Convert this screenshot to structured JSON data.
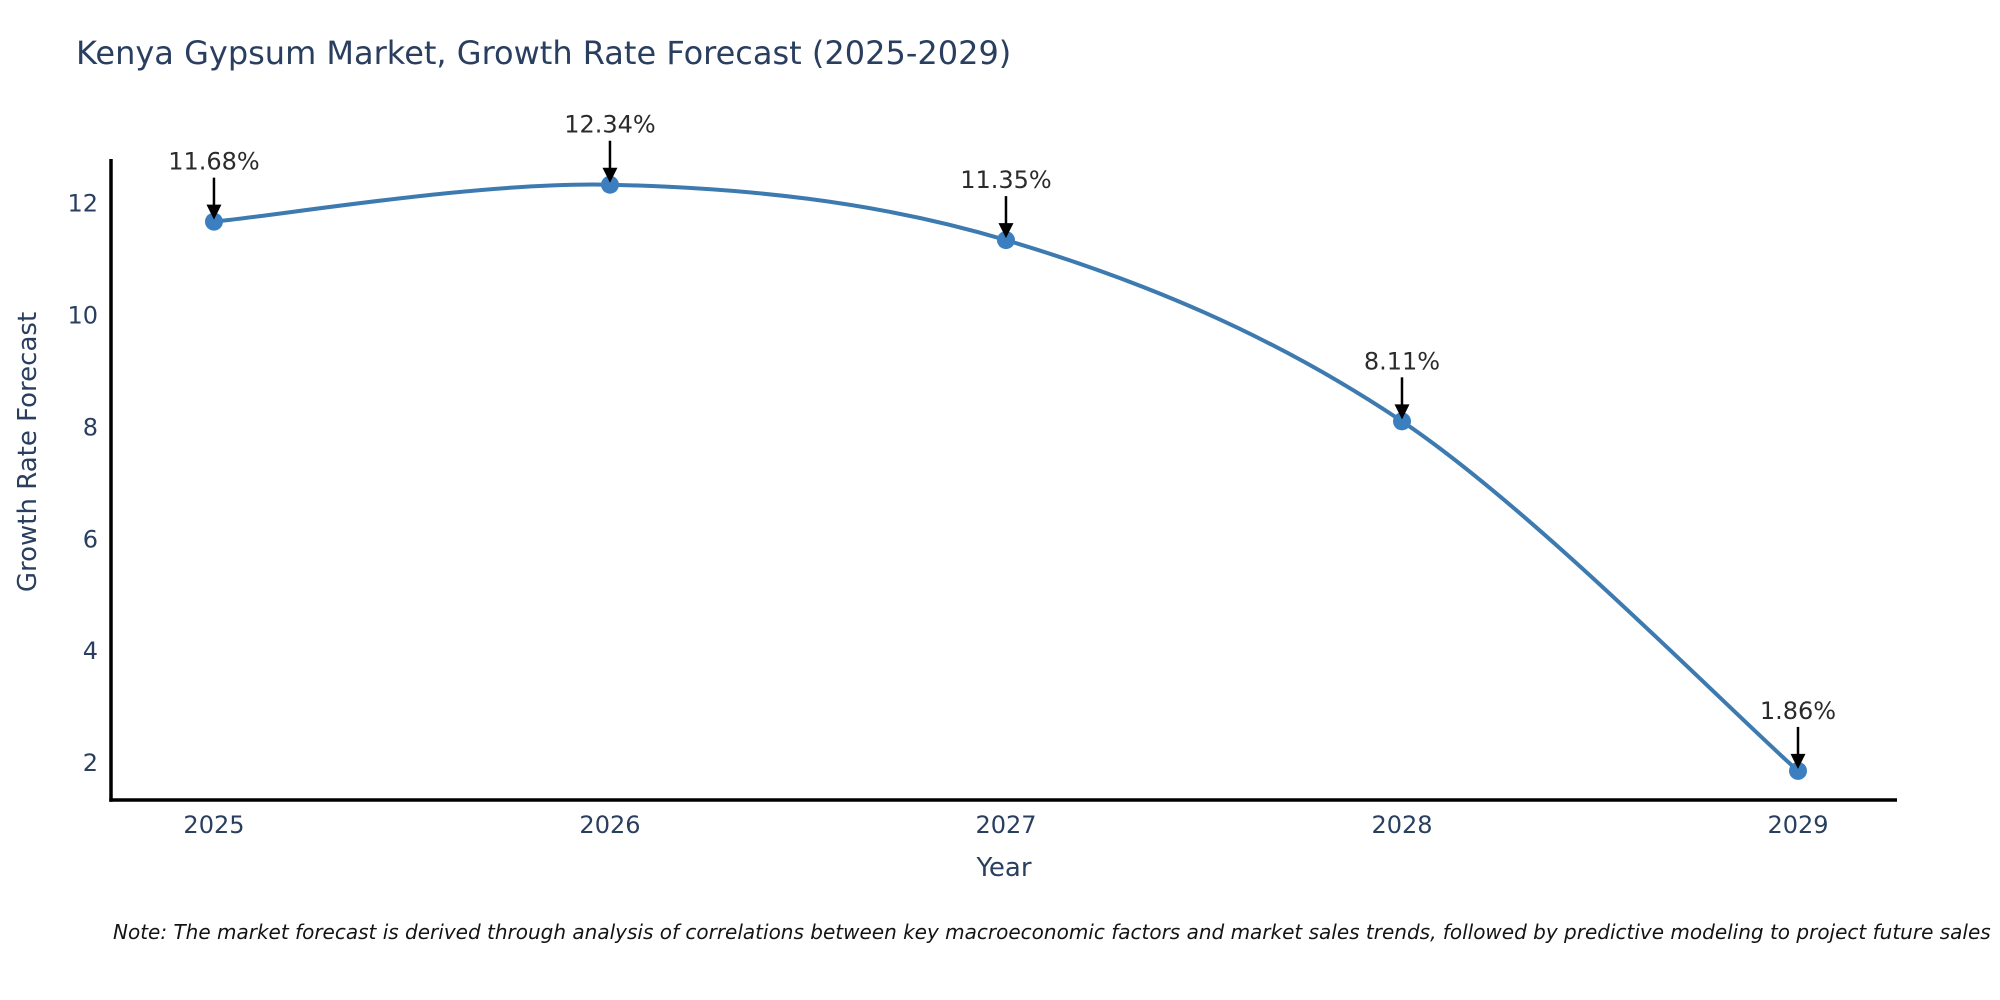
{
  "figure": {
    "title": "Kenya Gypsum Market, Growth Rate Forecast (2025-2029)",
    "xlabel": "Year",
    "ylabel": "Growth Rate Forecast",
    "note": "Note: The market forecast is derived through analysis of correlations between key macroeconomic factors and market sales trends, followed by predictive modeling to project future sales"
  },
  "chart_data": {
    "type": "line",
    "title": "Kenya Gypsum Market, Growth Rate Forecast (2025-2029)",
    "xlabel": "Year",
    "ylabel": "Growth Rate Forecast",
    "x": [
      2025,
      2026,
      2027,
      2028,
      2029
    ],
    "series": [
      {
        "name": "Growth Rate Forecast",
        "values": [
          11.68,
          12.34,
          11.35,
          8.11,
          1.86
        ]
      }
    ],
    "point_labels": [
      "11.68%",
      "12.34%",
      "11.35%",
      "8.11%",
      "1.86%"
    ],
    "yticks": [
      2,
      4,
      6,
      8,
      10,
      12
    ],
    "xlim": [
      2024.74,
      2029.25
    ],
    "ylim": [
      1.34,
      12.8
    ],
    "line_shape": "spline",
    "grid": false,
    "legend": false,
    "colors": {
      "line": "#3d7ab0",
      "marker": "#3c7fc0",
      "axis": "#000000",
      "tick_text": "#2a3f5f",
      "annotation_text": "#2b2b2b",
      "arrow": "#000000",
      "background": "#ffffff"
    }
  }
}
